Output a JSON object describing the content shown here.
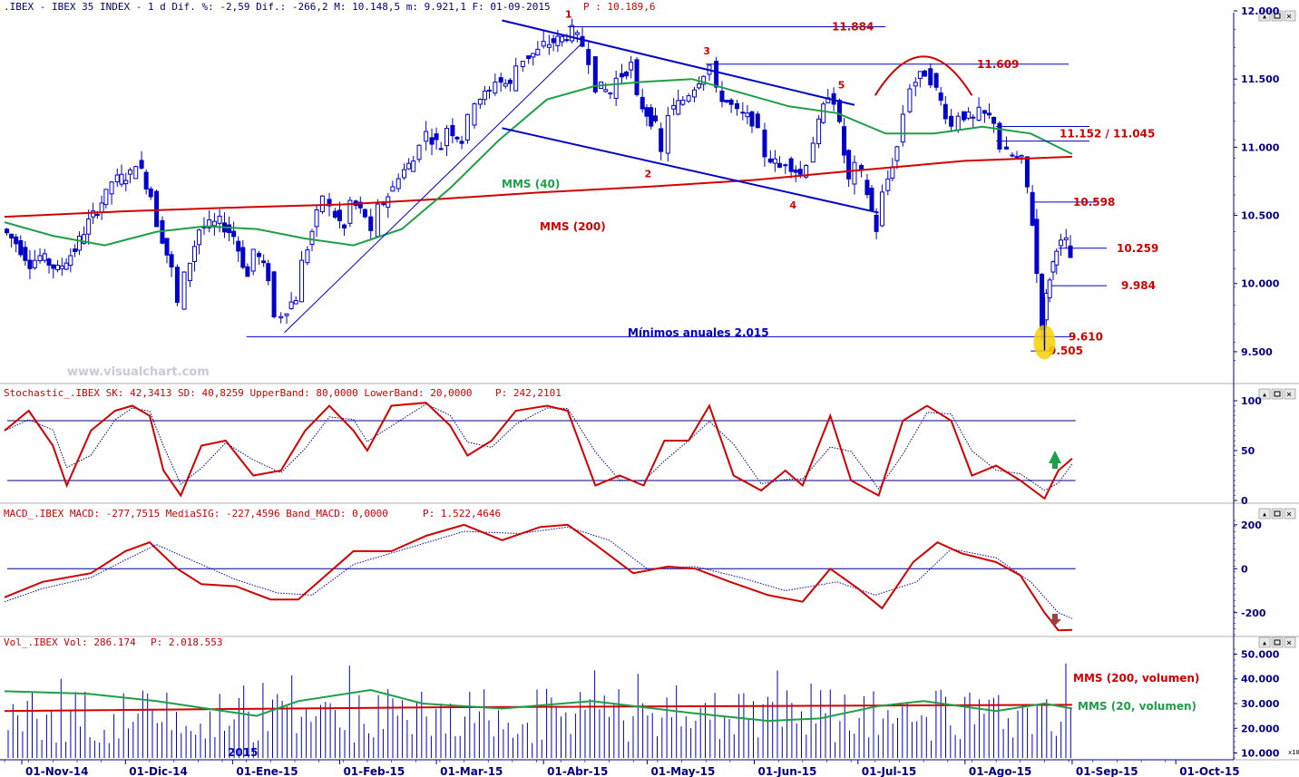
{
  "header": {
    "main": ".IBEX - IBEX 35 INDEX -   1 d Dif. %: -2,59 Dif.: -266,2 M: 10.148,5 m: 9.921,1 F: 01-09-2015",
    "price": "P : 10.189,6",
    "stoch": "Stochastic_.IBEX SK: 42,3413 SD: 40,8259 UpperBand: 80,0000 LowerBand: 20,0000",
    "stoch_p": "P: 242,2101",
    "macd": "MACD_.IBEX MACD: -277,7515 MediaSIG: -227,4596 Band_MACD: 0,0000",
    "macd_p": "P: 1.522,4646",
    "vol": "Vol_.IBEX Vol: 286.174",
    "vol_p": "P: 2.018.553"
  },
  "watermark": "www.visualchart.com",
  "colors": {
    "candle": "#0000c8",
    "mms200": "#d00000",
    "mms40": "#1e9e46",
    "trend": "#0000c8",
    "axis_text": "#000080",
    "label_red": "#d00000",
    "highlight": "#f5d000"
  },
  "chart_data": [
    {
      "type": "candlestick",
      "id": "price",
      "ylim": [
        9300,
        12000
      ],
      "y_ticks": [
        "12.000",
        "11.500",
        "11.000",
        "10.500",
        "10.000",
        "9.500"
      ],
      "y_tick_values": [
        12000,
        11500,
        11000,
        10500,
        10000,
        9500
      ],
      "x_dates": [
        "01-Nov-14",
        "01-Dic-14",
        "01-Ene-15",
        "01-Feb-15",
        "01-Mar-15",
        "01-Abr-15",
        "01-May-15",
        "01-Jun-15",
        "01-Jul-15",
        "01-Ago-15",
        "01-Sep-15",
        "01-Oct-15"
      ],
      "close_path": [
        [
          "2014-10-27",
          10400
        ],
        [
          "2014-10-31",
          10300
        ],
        [
          "2014-11-04",
          10150
        ],
        [
          "2014-11-07",
          10200
        ],
        [
          "2014-11-12",
          10100
        ],
        [
          "2014-11-17",
          10250
        ],
        [
          "2014-11-21",
          10450
        ],
        [
          "2014-11-26",
          10650
        ],
        [
          "2014-11-28",
          10750
        ],
        [
          "2014-12-03",
          10800
        ],
        [
          "2014-12-05",
          10900
        ],
        [
          "2014-12-09",
          10650
        ],
        [
          "2014-12-11",
          10450
        ],
        [
          "2014-12-15",
          10100
        ],
        [
          "2014-12-17",
          9850
        ],
        [
          "2014-12-19",
          10050
        ],
        [
          "2014-12-23",
          10400
        ],
        [
          "2014-12-29",
          10450
        ],
        [
          "2015-01-02",
          10350
        ],
        [
          "2015-01-06",
          10050
        ],
        [
          "2015-01-08",
          10250
        ],
        [
          "2015-01-12",
          10050
        ],
        [
          "2015-01-14",
          9750
        ],
        [
          "2015-01-16",
          9780
        ],
        [
          "2015-01-20",
          9900
        ],
        [
          "2015-01-22",
          10150
        ],
        [
          "2015-01-26",
          10500
        ],
        [
          "2015-01-28",
          10650
        ],
        [
          "2015-01-30",
          10550
        ],
        [
          "2015-02-03",
          10400
        ],
        [
          "2015-02-05",
          10600
        ],
        [
          "2015-02-09",
          10500
        ],
        [
          "2015-02-11",
          10350
        ],
        [
          "2015-02-13",
          10550
        ],
        [
          "2015-02-17",
          10700
        ],
        [
          "2015-02-19",
          10800
        ],
        [
          "2015-02-23",
          10900
        ],
        [
          "2015-02-25",
          11050
        ],
        [
          "2015-02-27",
          11100
        ],
        [
          "2015-03-03",
          11000
        ],
        [
          "2015-03-05",
          11150
        ],
        [
          "2015-03-09",
          11050
        ],
        [
          "2015-03-11",
          11200
        ],
        [
          "2015-03-13",
          11350
        ],
        [
          "2015-03-17",
          11400
        ],
        [
          "2015-03-19",
          11500
        ],
        [
          "2015-03-23",
          11450
        ],
        [
          "2015-03-25",
          11600
        ],
        [
          "2015-03-27",
          11650
        ],
        [
          "2015-03-31",
          11700
        ],
        [
          "2015-04-02",
          11750
        ],
        [
          "2015-04-07",
          11800
        ],
        [
          "2015-04-10",
          11850
        ],
        [
          "2015-04-13",
          11750
        ],
        [
          "2015-04-15",
          11650
        ],
        [
          "2015-04-17",
          11450
        ],
        [
          "2015-04-21",
          11400
        ],
        [
          "2015-04-23",
          11500
        ],
        [
          "2015-04-27",
          11600
        ],
        [
          "2015-04-29",
          11350
        ],
        [
          "2015-05-04",
          11150
        ],
        [
          "2015-05-06",
          10950
        ],
        [
          "2015-05-08",
          11250
        ],
        [
          "2015-05-12",
          11350
        ],
        [
          "2015-05-14",
          11400
        ],
        [
          "2015-05-18",
          11550
        ],
        [
          "2015-05-20",
          11600
        ],
        [
          "2015-05-22",
          11400
        ],
        [
          "2015-05-26",
          11300
        ],
        [
          "2015-05-28",
          11250
        ],
        [
          "2015-06-01",
          11200
        ],
        [
          "2015-06-03",
          11100
        ],
        [
          "2015-06-05",
          10950
        ],
        [
          "2015-06-09",
          10850
        ],
        [
          "2015-06-11",
          10900
        ],
        [
          "2015-06-15",
          10800
        ],
        [
          "2015-06-17",
          10900
        ],
        [
          "2015-06-19",
          11050
        ],
        [
          "2015-06-23",
          11400
        ],
        [
          "2015-06-25",
          11350
        ],
        [
          "2015-06-29",
          10750
        ],
        [
          "2015-07-01",
          10850
        ],
        [
          "2015-07-03",
          10800
        ],
        [
          "2015-07-07",
          10400
        ],
        [
          "2015-07-09",
          10650
        ],
        [
          "2015-07-13",
          11000
        ],
        [
          "2015-07-15",
          11250
        ],
        [
          "2015-07-17",
          11450
        ],
        [
          "2015-07-21",
          11550
        ],
        [
          "2015-07-23",
          11500
        ],
        [
          "2015-07-27",
          11250
        ],
        [
          "2015-07-29",
          11150
        ],
        [
          "2015-07-31",
          11250
        ],
        [
          "2015-08-04",
          11200
        ],
        [
          "2015-08-06",
          11250
        ],
        [
          "2015-08-10",
          11200
        ],
        [
          "2015-08-12",
          11000
        ],
        [
          "2015-08-14",
          10950
        ],
        [
          "2015-08-18",
          10900
        ],
        [
          "2015-08-20",
          10700
        ],
        [
          "2015-08-21",
          10450
        ],
        [
          "2015-08-24",
          9700
        ],
        [
          "2015-08-25",
          9900
        ],
        [
          "2015-08-26",
          10050
        ],
        [
          "2015-08-27",
          10150
        ],
        [
          "2015-08-28",
          10280
        ],
        [
          "2015-08-31",
          10300
        ],
        [
          "2015-09-01",
          10190
        ]
      ],
      "mms40": [
        [
          "2014-10-27",
          10450
        ],
        [
          "2014-11-10",
          10350
        ],
        [
          "2014-11-25",
          10280
        ],
        [
          "2014-12-10",
          10380
        ],
        [
          "2014-12-24",
          10420
        ],
        [
          "2015-01-08",
          10400
        ],
        [
          "2015-01-22",
          10330
        ],
        [
          "2015-02-05",
          10280
        ],
        [
          "2015-02-19",
          10400
        ],
        [
          "2015-03-05",
          10700
        ],
        [
          "2015-03-19",
          11050
        ],
        [
          "2015-04-02",
          11350
        ],
        [
          "2015-04-16",
          11450
        ],
        [
          "2015-04-30",
          11480
        ],
        [
          "2015-05-14",
          11500
        ],
        [
          "2015-05-28",
          11400
        ],
        [
          "2015-06-11",
          11300
        ],
        [
          "2015-06-25",
          11250
        ],
        [
          "2015-07-09",
          11100
        ],
        [
          "2015-07-23",
          11100
        ],
        [
          "2015-08-06",
          11150
        ],
        [
          "2015-08-20",
          11100
        ],
        [
          "2015-09-01",
          10950
        ]
      ],
      "mms200": [
        [
          "2014-10-27",
          10490
        ],
        [
          "2014-12-01",
          10530
        ],
        [
          "2015-01-05",
          10560
        ],
        [
          "2015-02-02",
          10580
        ],
        [
          "2015-03-02",
          10620
        ],
        [
          "2015-04-01",
          10670
        ],
        [
          "2015-05-01",
          10710
        ],
        [
          "2015-06-01",
          10760
        ],
        [
          "2015-07-01",
          10830
        ],
        [
          "2015-08-01",
          10900
        ],
        [
          "2015-09-01",
          10930
        ]
      ],
      "levels": [
        {
          "label": "11.884",
          "value": 11884
        },
        {
          "label": "11.609",
          "value": 11609
        },
        {
          "label": "11.152 / 11.045",
          "value": 11152,
          "value2": 11045
        },
        {
          "label": "10.598",
          "value": 10598
        },
        {
          "label": "10.259",
          "value": 10259
        },
        {
          "label": "9.984",
          "value": 9984
        },
        {
          "label": "9.610",
          "value": 9610
        },
        {
          "label": "9.505",
          "value": 9505
        }
      ],
      "wave_labels": [
        "1",
        "2",
        "3",
        "4",
        "5"
      ],
      "annotations": {
        "mms40": "MMS (40)",
        "mms200": "MMS (200)",
        "minimos": "Mínimos anuales 2.015"
      }
    },
    {
      "type": "line",
      "id": "stochastic",
      "ylim": [
        0,
        100
      ],
      "y_ticks": [
        "100",
        "50",
        "0"
      ],
      "bands": [
        80,
        20
      ],
      "sk": [
        [
          "2014-10-27",
          70
        ],
        [
          "2014-11-03",
          90
        ],
        [
          "2014-11-10",
          55
        ],
        [
          "2014-11-14",
          15
        ],
        [
          "2014-11-21",
          70
        ],
        [
          "2014-11-28",
          90
        ],
        [
          "2014-12-03",
          95
        ],
        [
          "2014-12-08",
          85
        ],
        [
          "2014-12-12",
          30
        ],
        [
          "2014-12-17",
          5
        ],
        [
          "2014-12-23",
          55
        ],
        [
          "2014-12-30",
          60
        ],
        [
          "2015-01-07",
          25
        ],
        [
          "2015-01-15",
          30
        ],
        [
          "2015-01-22",
          70
        ],
        [
          "2015-01-29",
          95
        ],
        [
          "2015-02-05",
          70
        ],
        [
          "2015-02-09",
          50
        ],
        [
          "2015-02-16",
          95
        ],
        [
          "2015-02-26",
          98
        ],
        [
          "2015-03-05",
          75
        ],
        [
          "2015-03-10",
          45
        ],
        [
          "2015-03-17",
          60
        ],
        [
          "2015-03-24",
          90
        ],
        [
          "2015-04-02",
          95
        ],
        [
          "2015-04-08",
          90
        ],
        [
          "2015-04-16",
          15
        ],
        [
          "2015-04-23",
          25
        ],
        [
          "2015-04-30",
          15
        ],
        [
          "2015-05-06",
          60
        ],
        [
          "2015-05-13",
          60
        ],
        [
          "2015-05-19",
          95
        ],
        [
          "2015-05-26",
          25
        ],
        [
          "2015-06-03",
          10
        ],
        [
          "2015-06-10",
          30
        ],
        [
          "2015-06-15",
          15
        ],
        [
          "2015-06-23",
          85
        ],
        [
          "2015-06-29",
          20
        ],
        [
          "2015-07-07",
          5
        ],
        [
          "2015-07-14",
          80
        ],
        [
          "2015-07-21",
          95
        ],
        [
          "2015-07-28",
          80
        ],
        [
          "2015-08-03",
          25
        ],
        [
          "2015-08-10",
          35
        ],
        [
          "2015-08-17",
          20
        ],
        [
          "2015-08-24",
          2
        ],
        [
          "2015-08-28",
          30
        ],
        [
          "2015-09-01",
          42
        ]
      ],
      "direction": "up"
    },
    {
      "type": "line",
      "id": "macd",
      "ylim": [
        -300,
        220
      ],
      "y_ticks": [
        "200",
        "0",
        "-200"
      ],
      "y_tick_values": [
        200,
        0,
        -200
      ],
      "macd_line": [
        [
          "2014-10-27",
          -130
        ],
        [
          "2014-11-07",
          -60
        ],
        [
          "2014-11-21",
          -20
        ],
        [
          "2014-12-01",
          80
        ],
        [
          "2014-12-08",
          120
        ],
        [
          "2014-12-16",
          0
        ],
        [
          "2014-12-23",
          -70
        ],
        [
          "2015-01-02",
          -80
        ],
        [
          "2015-01-12",
          -140
        ],
        [
          "2015-01-20",
          -140
        ],
        [
          "2015-01-28",
          -30
        ],
        [
          "2015-02-05",
          80
        ],
        [
          "2015-02-16",
          80
        ],
        [
          "2015-02-26",
          150
        ],
        [
          "2015-03-09",
          200
        ],
        [
          "2015-03-20",
          130
        ],
        [
          "2015-03-31",
          190
        ],
        [
          "2015-04-08",
          200
        ],
        [
          "2015-04-16",
          110
        ],
        [
          "2015-04-27",
          -20
        ],
        [
          "2015-05-07",
          10
        ],
        [
          "2015-05-15",
          0
        ],
        [
          "2015-05-25",
          -60
        ],
        [
          "2015-06-05",
          -120
        ],
        [
          "2015-06-15",
          -150
        ],
        [
          "2015-06-23",
          0
        ],
        [
          "2015-07-01",
          -90
        ],
        [
          "2015-07-08",
          -180
        ],
        [
          "2015-07-17",
          30
        ],
        [
          "2015-07-24",
          120
        ],
        [
          "2015-07-31",
          70
        ],
        [
          "2015-08-10",
          30
        ],
        [
          "2015-08-17",
          -30
        ],
        [
          "2015-08-24",
          -200
        ],
        [
          "2015-08-28",
          -280
        ],
        [
          "2015-09-01",
          -278
        ]
      ],
      "signal_line": [
        [
          "2014-10-27",
          -150
        ],
        [
          "2014-11-07",
          -90
        ],
        [
          "2014-11-21",
          -40
        ],
        [
          "2014-12-01",
          40
        ],
        [
          "2014-12-10",
          110
        ],
        [
          "2014-12-20",
          40
        ],
        [
          "2015-01-02",
          -50
        ],
        [
          "2015-01-14",
          -110
        ],
        [
          "2015-01-24",
          -120
        ],
        [
          "2015-02-05",
          20
        ],
        [
          "2015-02-20",
          90
        ],
        [
          "2015-03-09",
          170
        ],
        [
          "2015-03-25",
          160
        ],
        [
          "2015-04-08",
          190
        ],
        [
          "2015-04-20",
          130
        ],
        [
          "2015-05-01",
          0
        ],
        [
          "2015-05-15",
          10
        ],
        [
          "2015-05-28",
          -40
        ],
        [
          "2015-06-10",
          -100
        ],
        [
          "2015-06-25",
          -60
        ],
        [
          "2015-07-06",
          -120
        ],
        [
          "2015-07-18",
          -60
        ],
        [
          "2015-07-28",
          90
        ],
        [
          "2015-08-10",
          50
        ],
        [
          "2015-08-20",
          -60
        ],
        [
          "2015-08-28",
          -200
        ],
        [
          "2015-09-01",
          -227
        ]
      ],
      "direction": "down"
    },
    {
      "type": "bar",
      "id": "volume",
      "ylim": [
        8000,
        52000
      ],
      "y_ticks": [
        "50.000",
        "40.000",
        "30.000",
        "20.000",
        "10.000"
      ],
      "y_tick_values": [
        50000,
        40000,
        30000,
        20000,
        10000
      ],
      "year_marker": "2015",
      "mms200_label": "MMS (200, volumen)",
      "mms20_label": "MMS (20, volumen)",
      "mms200": [
        [
          "2014-10-27",
          27000
        ],
        [
          "2015-03-01",
          28500
        ],
        [
          "2015-09-01",
          29500
        ]
      ],
      "mms20": [
        [
          "2014-10-27",
          35000
        ],
        [
          "2014-11-20",
          34000
        ],
        [
          "2014-12-10",
          31000
        ],
        [
          "2015-01-08",
          25000
        ],
        [
          "2015-01-20",
          31000
        ],
        [
          "2015-02-10",
          35500
        ],
        [
          "2015-02-25",
          30000
        ],
        [
          "2015-03-20",
          28000
        ],
        [
          "2015-04-15",
          31000
        ],
        [
          "2015-05-15",
          26000
        ],
        [
          "2015-06-05",
          23000
        ],
        [
          "2015-06-20",
          24000
        ],
        [
          "2015-07-07",
          29000
        ],
        [
          "2015-07-20",
          31000
        ],
        [
          "2015-08-10",
          27000
        ],
        [
          "2015-08-24",
          30000
        ],
        [
          "2015-09-01",
          28000
        ]
      ]
    }
  ]
}
